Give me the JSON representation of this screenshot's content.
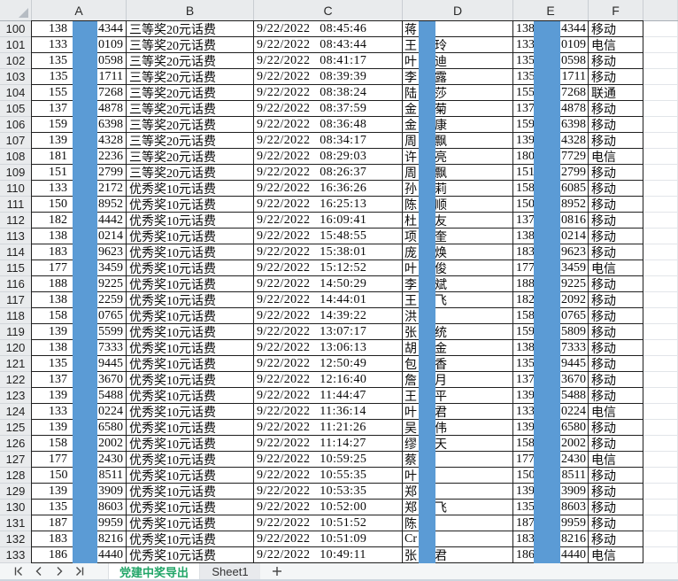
{
  "spreadsheet": {
    "columns": [
      "A",
      "B",
      "C",
      "D",
      "E",
      "F"
    ],
    "redacted_note": "middle digits of phones and middle characters of names are covered by blue redaction bars",
    "rows": [
      {
        "n": "100",
        "a_prefix": "138",
        "a_suffix": "4344",
        "prize": "三等奖20元话费",
        "time": "9/22/2022 08:45:46",
        "name_first": "蒋",
        "name_last": "",
        "e_prefix": "138",
        "e_suffix": "4344",
        "carrier": "移动"
      },
      {
        "n": "101",
        "a_prefix": "133",
        "a_suffix": "0109",
        "prize": "三等奖20元话费",
        "time": "9/22/2022 08:43:44",
        "name_first": "王",
        "name_last": "玲",
        "e_prefix": "133",
        "e_suffix": "0109",
        "carrier": "电信"
      },
      {
        "n": "102",
        "a_prefix": "135",
        "a_suffix": "0598",
        "prize": "三等奖20元话费",
        "time": "9/22/2022 08:41:17",
        "name_first": "叶",
        "name_last": "迪",
        "e_prefix": "135",
        "e_suffix": "0598",
        "carrier": "移动"
      },
      {
        "n": "103",
        "a_prefix": "135",
        "a_suffix": "1711",
        "prize": "三等奖20元话费",
        "time": "9/22/2022 08:39:39",
        "name_first": "李",
        "name_last": "露",
        "e_prefix": "135",
        "e_suffix": "1711",
        "carrier": "移动"
      },
      {
        "n": "104",
        "a_prefix": "155",
        "a_suffix": "7268",
        "prize": "三等奖20元话费",
        "time": "9/22/2022 08:38:24",
        "name_first": "陆",
        "name_last": "莎",
        "e_prefix": "155",
        "e_suffix": "7268",
        "carrier": "联通"
      },
      {
        "n": "105",
        "a_prefix": "137",
        "a_suffix": "4878",
        "prize": "三等奖20元话费",
        "time": "9/22/2022 08:37:59",
        "name_first": "金",
        "name_last": "菊",
        "e_prefix": "137",
        "e_suffix": "4878",
        "carrier": "移动"
      },
      {
        "n": "106",
        "a_prefix": "159",
        "a_suffix": "6398",
        "prize": "三等奖20元话费",
        "time": "9/22/2022 08:36:48",
        "name_first": "金",
        "name_last": "康",
        "e_prefix": "159",
        "e_suffix": "6398",
        "carrier": "移动"
      },
      {
        "n": "107",
        "a_prefix": "139",
        "a_suffix": "4328",
        "prize": "三等奖20元话费",
        "time": "9/22/2022 08:34:17",
        "name_first": "周",
        "name_last": "飘",
        "e_prefix": "139",
        "e_suffix": "4328",
        "carrier": "移动"
      },
      {
        "n": "108",
        "a_prefix": "181",
        "a_suffix": "2236",
        "prize": "三等奖20元话费",
        "time": "9/22/2022 08:29:03",
        "name_first": "许",
        "name_last": "亮",
        "e_prefix": "180",
        "e_suffix": "7729",
        "carrier": "电信"
      },
      {
        "n": "109",
        "a_prefix": "151",
        "a_suffix": "2799",
        "prize": "三等奖20元话费",
        "time": "9/22/2022 08:26:37",
        "name_first": "周",
        "name_last": "飘",
        "e_prefix": "151",
        "e_suffix": "2799",
        "carrier": "移动"
      },
      {
        "n": "110",
        "a_prefix": "133",
        "a_suffix": "2172",
        "prize": "优秀奖10元话费",
        "time": "9/22/2022 16:36:26",
        "name_first": "孙",
        "name_last": "莉",
        "e_prefix": "158",
        "e_suffix": "6085",
        "carrier": "移动"
      },
      {
        "n": "111",
        "a_prefix": "150",
        "a_suffix": "8952",
        "prize": "优秀奖10元话费",
        "time": "9/22/2022 16:25:13",
        "name_first": "陈",
        "name_last": "顺",
        "e_prefix": "150",
        "e_suffix": "8952",
        "carrier": "移动"
      },
      {
        "n": "112",
        "a_prefix": "182",
        "a_suffix": "4442",
        "prize": "优秀奖10元话费",
        "time": "9/22/2022 16:09:41",
        "name_first": "杜",
        "name_last": "友",
        "e_prefix": "137",
        "e_suffix": "0816",
        "carrier": "移动"
      },
      {
        "n": "113",
        "a_prefix": "138",
        "a_suffix": "0214",
        "prize": "优秀奖10元话费",
        "time": "9/22/2022 15:48:55",
        "name_first": "项",
        "name_last": "奎",
        "e_prefix": "138",
        "e_suffix": "0214",
        "carrier": "移动"
      },
      {
        "n": "114",
        "a_prefix": "183",
        "a_suffix": "9623",
        "prize": "优秀奖10元话费",
        "time": "9/22/2022 15:38:01",
        "name_first": "庞",
        "name_last": "焕",
        "e_prefix": "183",
        "e_suffix": "9623",
        "carrier": "移动"
      },
      {
        "n": "115",
        "a_prefix": "177",
        "a_suffix": "3459",
        "prize": "优秀奖10元话费",
        "time": "9/22/2022 15:12:52",
        "name_first": "叶",
        "name_last": "俊",
        "e_prefix": "177",
        "e_suffix": "3459",
        "carrier": "电信"
      },
      {
        "n": "116",
        "a_prefix": "188",
        "a_suffix": "9225",
        "prize": "优秀奖10元话费",
        "time": "9/22/2022 14:50:29",
        "name_first": "李",
        "name_last": "斌",
        "e_prefix": "188",
        "e_suffix": "9225",
        "carrier": "移动"
      },
      {
        "n": "117",
        "a_prefix": "138",
        "a_suffix": "2259",
        "prize": "优秀奖10元话费",
        "time": "9/22/2022 14:44:01",
        "name_first": "王",
        "name_last": "飞",
        "e_prefix": "182",
        "e_suffix": "2092",
        "carrier": "移动"
      },
      {
        "n": "118",
        "a_prefix": "158",
        "a_suffix": "0765",
        "prize": "优秀奖10元话费",
        "time": "9/22/2022 14:39:22",
        "name_first": "洪",
        "name_last": "",
        "e_prefix": "158",
        "e_suffix": "0765",
        "carrier": "移动"
      },
      {
        "n": "119",
        "a_prefix": "139",
        "a_suffix": "5599",
        "prize": "优秀奖10元话费",
        "time": "9/22/2022 13:07:17",
        "name_first": "张",
        "name_last": "统",
        "e_prefix": "159",
        "e_suffix": "5809",
        "carrier": "移动"
      },
      {
        "n": "120",
        "a_prefix": "138",
        "a_suffix": "7333",
        "prize": "优秀奖10元话费",
        "time": "9/22/2022 13:06:13",
        "name_first": "胡",
        "name_last": "金",
        "e_prefix": "138",
        "e_suffix": "7333",
        "carrier": "移动"
      },
      {
        "n": "121",
        "a_prefix": "135",
        "a_suffix": "9445",
        "prize": "优秀奖10元话费",
        "time": "9/22/2022 12:50:49",
        "name_first": "包",
        "name_last": "香",
        "e_prefix": "135",
        "e_suffix": "9445",
        "carrier": "移动"
      },
      {
        "n": "122",
        "a_prefix": "137",
        "a_suffix": "3670",
        "prize": "优秀奖10元话费",
        "time": "9/22/2022 12:16:40",
        "name_first": "詹",
        "name_last": "月",
        "e_prefix": "137",
        "e_suffix": "3670",
        "carrier": "移动"
      },
      {
        "n": "123",
        "a_prefix": "139",
        "a_suffix": "5488",
        "prize": "优秀奖10元话费",
        "time": "9/22/2022 11:44:47",
        "name_first": "王",
        "name_last": "平",
        "e_prefix": "139",
        "e_suffix": "5488",
        "carrier": "移动"
      },
      {
        "n": "124",
        "a_prefix": "133",
        "a_suffix": "0224",
        "prize": "优秀奖10元话费",
        "time": "9/22/2022 11:36:14",
        "name_first": "叶",
        "name_last": "君",
        "e_prefix": "133",
        "e_suffix": "0224",
        "carrier": "电信"
      },
      {
        "n": "125",
        "a_prefix": "139",
        "a_suffix": "6580",
        "prize": "优秀奖10元话费",
        "time": "9/22/2022 11:21:26",
        "name_first": "吴",
        "name_last": "伟",
        "e_prefix": "139",
        "e_suffix": "6580",
        "carrier": "移动"
      },
      {
        "n": "126",
        "a_prefix": "158",
        "a_suffix": "2002",
        "prize": "优秀奖10元话费",
        "time": "9/22/2022 11:14:27",
        "name_first": "缪",
        "name_last": "天",
        "e_prefix": "158",
        "e_suffix": "2002",
        "carrier": "移动"
      },
      {
        "n": "127",
        "a_prefix": "177",
        "a_suffix": "2430",
        "prize": "优秀奖10元话费",
        "time": "9/22/2022 10:59:25",
        "name_first": "蔡",
        "name_last": "",
        "e_prefix": "177",
        "e_suffix": "2430",
        "carrier": "电信"
      },
      {
        "n": "128",
        "a_prefix": "150",
        "a_suffix": "8511",
        "prize": "优秀奖10元话费",
        "time": "9/22/2022 10:55:35",
        "name_first": "叶",
        "name_last": "",
        "e_prefix": "150",
        "e_suffix": "8511",
        "carrier": "移动"
      },
      {
        "n": "129",
        "a_prefix": "139",
        "a_suffix": "3909",
        "prize": "优秀奖10元话费",
        "time": "9/22/2022 10:53:35",
        "name_first": "郑",
        "name_last": "",
        "e_prefix": "139",
        "e_suffix": "3909",
        "carrier": "移动"
      },
      {
        "n": "130",
        "a_prefix": "135",
        "a_suffix": "8603",
        "prize": "优秀奖10元话费",
        "time": "9/22/2022 10:52:00",
        "name_first": "郑",
        "name_last": "飞",
        "e_prefix": "135",
        "e_suffix": "8603",
        "carrier": "移动"
      },
      {
        "n": "131",
        "a_prefix": "187",
        "a_suffix": "9959",
        "prize": "优秀奖10元话费",
        "time": "9/22/2022 10:51:52",
        "name_first": "陈",
        "name_last": "",
        "e_prefix": "187",
        "e_suffix": "9959",
        "carrier": "移动"
      },
      {
        "n": "132",
        "a_prefix": "183",
        "a_suffix": "8216",
        "prize": "优秀奖10元话费",
        "time": "9/22/2022 10:51:09",
        "name_first": "Cr",
        "name_last": "",
        "e_prefix": "183",
        "e_suffix": "8216",
        "carrier": "移动"
      },
      {
        "n": "133",
        "a_prefix": "186",
        "a_suffix": "4440",
        "prize": "优秀奖10元话费",
        "time": "9/22/2022 10:49:11",
        "name_first": "张",
        "name_last": "君",
        "e_prefix": "186",
        "e_suffix": "4440",
        "carrier": "电信"
      }
    ]
  },
  "tabs": {
    "active": "党建中奖导出",
    "second": "Sheet1"
  },
  "colors": {
    "redaction_blue": "#5B9BD5",
    "active_tab_green": "#21A567",
    "grid_border": "#1f1f1f"
  }
}
